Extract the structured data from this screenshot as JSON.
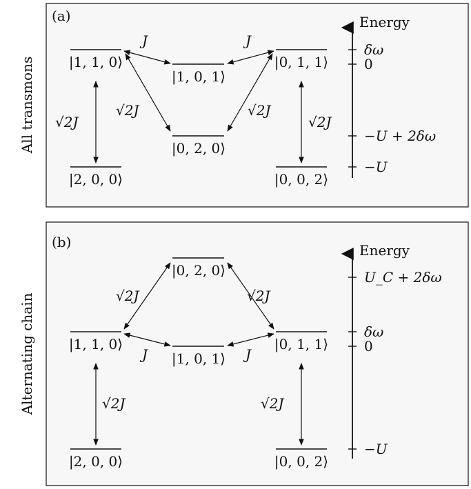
{
  "panel_a": {
    "tag": "(a)",
    "side_label": "All transmons",
    "axis_title": "Energy",
    "ticks": [
      "δω",
      "0",
      "−U + 2δω",
      "−U"
    ],
    "levels": [
      "|1, 1, 0⟩",
      "|1, 0, 1⟩",
      "|0, 1, 1⟩",
      "|0, 2, 0⟩",
      "|2, 0, 0⟩",
      "|0, 0, 2⟩"
    ],
    "couplings": [
      "J",
      "J",
      "√2J",
      "√2J",
      "√2J",
      "√2J"
    ]
  },
  "panel_b": {
    "tag": "(b)",
    "side_label": "Alternating chain",
    "axis_title": "Energy",
    "ticks": [
      "U_C + 2δω",
      "δω",
      "0",
      "−U"
    ],
    "levels": [
      "|0, 2, 0⟩",
      "|1, 1, 0⟩",
      "|1, 0, 1⟩",
      "|0, 1, 1⟩",
      "|2, 0, 0⟩",
      "|0, 0, 2⟩"
    ],
    "couplings": [
      "√2J",
      "√2J",
      "J",
      "J",
      "√2J",
      "√2J"
    ]
  }
}
